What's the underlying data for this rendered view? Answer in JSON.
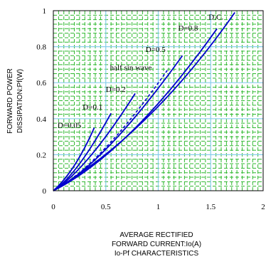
{
  "chart_data": {
    "type": "line",
    "title": "Io-Pf CHARACTERISTICS",
    "xlabel": [
      "AVERAGE RECTIFIED",
      "FORWARD CURRENT:Io(A)"
    ],
    "ylabel": [
      "FORWARD POWER",
      "DISSIPATION:Pf(W)"
    ],
    "xlim": [
      0,
      2
    ],
    "ylim": [
      0,
      1
    ],
    "xticks": [
      0,
      0.5,
      1,
      1.5,
      2
    ],
    "xtick_labels": [
      "0",
      "0.5",
      "1",
      "1.5",
      "2"
    ],
    "yticks": [
      0,
      0.2,
      0.4,
      0.6,
      0.8,
      1
    ],
    "ytick_labels": [
      "0",
      "0.2",
      "0.4",
      "0.6",
      "0.8",
      "1"
    ],
    "grid": true,
    "colors": {
      "grid_major": "#87ceeb",
      "grid_minor": "#2eb82e",
      "series": "#0000cc",
      "axes": "#000000"
    },
    "series": [
      {
        "name": "D=0.05",
        "points": [
          [
            0,
            0
          ],
          [
            0.2,
            0.14
          ],
          [
            0.39,
            0.35
          ]
        ]
      },
      {
        "name": "D=0.1",
        "points": [
          [
            0,
            0
          ],
          [
            0.25,
            0.15
          ],
          [
            0.55,
            0.43
          ]
        ]
      },
      {
        "name": "D=0.2",
        "points": [
          [
            0,
            0
          ],
          [
            0.35,
            0.19
          ],
          [
            0.78,
            0.54
          ]
        ]
      },
      {
        "name": "half sin wave",
        "dashed": true,
        "points": [
          [
            0,
            0
          ],
          [
            0.5,
            0.24
          ],
          [
            1.1,
            0.68
          ]
        ]
      },
      {
        "name": "D=0.5",
        "points": [
          [
            0,
            0
          ],
          [
            0.55,
            0.26
          ],
          [
            1.23,
            0.75
          ]
        ]
      },
      {
        "name": "D=0.8",
        "points": [
          [
            0,
            0
          ],
          [
            0.75,
            0.33
          ],
          [
            1.56,
            0.9
          ]
        ]
      },
      {
        "name": "D.C.",
        "points": [
          [
            0,
            0
          ],
          [
            0.9,
            0.41
          ],
          [
            1.73,
            0.99
          ]
        ]
      }
    ],
    "series_labels": [
      {
        "text": "D=0.05",
        "x": 0.04,
        "y": 0.35
      },
      {
        "text": "D=0.1",
        "x": 0.28,
        "y": 0.45
      },
      {
        "text": "D=0.2",
        "x": 0.5,
        "y": 0.55
      },
      {
        "text": "half sin wave",
        "x": 0.54,
        "y": 0.67
      },
      {
        "text": "D=0.5",
        "x": 0.88,
        "y": 0.77
      },
      {
        "text": "D=0.8",
        "x": 1.19,
        "y": 0.89
      },
      {
        "text": "D.C.",
        "x": 1.48,
        "y": 0.95
      }
    ]
  }
}
